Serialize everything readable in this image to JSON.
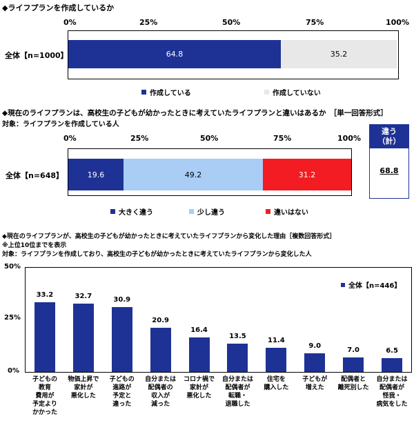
{
  "colors": {
    "navy": "#1e3296",
    "lightgray": "#e8e8e8",
    "lightblue": "#a9cdf5",
    "red": "#f21c22",
    "axis": "#000000"
  },
  "chart_data": [
    {
      "type": "bar",
      "orientation": "horizontal-stacked",
      "title": "◆ライフプランを作成しているか",
      "xticks": [
        "0%",
        "25%",
        "50%",
        "75%",
        "100%"
      ],
      "xlim": [
        0,
        100
      ],
      "category": "全体【n=1000】",
      "series": [
        {
          "name": "作成している",
          "value": 64.8,
          "label": "64.8"
        },
        {
          "name": "作成していない",
          "value": 35.2,
          "label": "35.2"
        }
      ],
      "legend": [
        "作成している",
        "作成していない"
      ]
    },
    {
      "type": "bar",
      "orientation": "horizontal-stacked",
      "title": "◆現在のライフプランは、高校生の子どもが幼かったときに考えていたライフプランと違いはあるか　［単一回答形式］",
      "subtitle": "対象：ライフプランを作成している人",
      "xticks": [
        "0%",
        "25%",
        "50%",
        "75%",
        "100%"
      ],
      "xlim": [
        0,
        100
      ],
      "category": "全体【n=648】",
      "series": [
        {
          "name": "大きく違う",
          "value": 19.6,
          "label": "19.6"
        },
        {
          "name": "少し違う",
          "value": 49.2,
          "label": "49.2"
        },
        {
          "name": "違いはない",
          "value": 31.2,
          "label": "31.2"
        }
      ],
      "legend": [
        "大きく違う",
        "少し違う",
        "違いはない"
      ],
      "summary_box": {
        "title_line1": "違う",
        "title_line2": "（計）",
        "value": "68.8"
      }
    },
    {
      "type": "bar",
      "orientation": "vertical",
      "title": "◆現在のライフプランが、高校生の子どもが幼かったときに考えていたライフプランから変化した理由［複数回答形式］",
      "note": "※上位10位までを表示",
      "subtitle": "対象：ライフプランを作成しており、高校生の子どもが幼かったときに考えていたライフプランから変化した人",
      "yticks": [
        "50%",
        "25%",
        "0%"
      ],
      "ylim": [
        0,
        50
      ],
      "legend": [
        "全体【n=446】"
      ],
      "categories": [
        "子どもの\n教育\n費用が\n予定より\nかかった",
        "物価上昇で\n家計が\n悪化した",
        "子どもの\n進路が\n予定と\n違った",
        "自分または\n配偶者の\n収入が\n減った",
        "コロナ禍で\n家計が\n悪化した",
        "自分または\n配偶者が\n転職・\n退職した",
        "住宅を\n購入した",
        "子どもが\n増えた",
        "配偶者と\n離死別した",
        "自分または\n配偶者が\n怪我・\n病気をした"
      ],
      "values": [
        33.2,
        32.7,
        30.9,
        20.9,
        16.4,
        13.5,
        11.4,
        9.0,
        7.0,
        6.5
      ],
      "labels": [
        "33.2",
        "32.7",
        "30.9",
        "20.9",
        "16.4",
        "13.5",
        "11.4",
        "9.0",
        "7.0",
        "6.5"
      ]
    }
  ]
}
